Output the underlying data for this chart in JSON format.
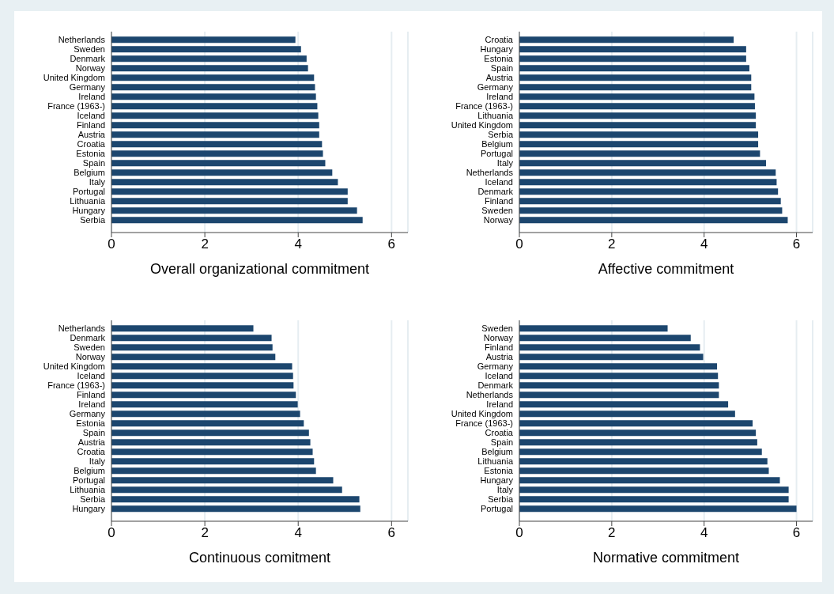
{
  "chart_data": [
    {
      "type": "bar",
      "orientation": "horizontal",
      "xlabel": "Overall organizational commitment",
      "categories": [
        "Netherlands",
        "Sweden",
        "Denmark",
        "Norway",
        "United Kingdom",
        "Germany",
        "Ireland",
        "France (1963-)",
        "Iceland",
        "Finland",
        "Austria",
        "Croatia",
        "Estonia",
        "Spain",
        "Belgium",
        "Italy",
        "Portugal",
        "Lithuania",
        "Hungary",
        "Serbia"
      ],
      "values": [
        3.94,
        4.06,
        4.18,
        4.21,
        4.34,
        4.36,
        4.38,
        4.41,
        4.43,
        4.45,
        4.45,
        4.51,
        4.53,
        4.58,
        4.73,
        4.85,
        5.06,
        5.06,
        5.26,
        5.38
      ],
      "color": "#1c466e",
      "xlim": [
        0,
        6.35
      ],
      "xticks": [
        0,
        2,
        4,
        6
      ],
      "grid": "x"
    },
    {
      "type": "bar",
      "orientation": "horizontal",
      "xlabel": "Affective commitment",
      "categories": [
        "Croatia",
        "Hungary",
        "Estonia",
        "Spain",
        "Austria",
        "Germany",
        "Ireland",
        "France (1963-)",
        "Lithuania",
        "United Kingdom",
        "Serbia",
        "Belgium",
        "Portugal",
        "Italy",
        "Netherlands",
        "Iceland",
        "Denmark",
        "Finland",
        "Sweden",
        "Norway"
      ],
      "values": [
        4.64,
        4.91,
        4.91,
        4.98,
        5.02,
        5.02,
        5.09,
        5.1,
        5.12,
        5.12,
        5.17,
        5.17,
        5.21,
        5.34,
        5.55,
        5.57,
        5.6,
        5.66,
        5.69,
        5.81
      ],
      "color": "#1c466e",
      "xlim": [
        0,
        6.35
      ],
      "xticks": [
        0,
        2,
        4,
        6
      ],
      "grid": "x"
    },
    {
      "type": "bar",
      "orientation": "horizontal",
      "xlabel": "Continuous comitment",
      "categories": [
        "Netherlands",
        "Denmark",
        "Sweden",
        "Norway",
        "United Kingdom",
        "Iceland",
        "France (1963-)",
        "Finland",
        "Ireland",
        "Germany",
        "Estonia",
        "Spain",
        "Austria",
        "Croatia",
        "Italy",
        "Belgium",
        "Portugal",
        "Lithuania",
        "Serbia",
        "Hungary"
      ],
      "values": [
        3.04,
        3.43,
        3.45,
        3.51,
        3.87,
        3.89,
        3.9,
        3.95,
        3.99,
        4.04,
        4.12,
        4.23,
        4.26,
        4.31,
        4.34,
        4.38,
        4.75,
        4.94,
        5.31,
        5.33
      ],
      "color": "#1c466e",
      "xlim": [
        0,
        6.35
      ],
      "xticks": [
        0,
        2,
        4,
        6
      ],
      "grid": "x"
    },
    {
      "type": "bar",
      "orientation": "horizontal",
      "xlabel": "Normative commitment",
      "categories": [
        "Sweden",
        "Norway",
        "Finland",
        "Austria",
        "Germany",
        "Iceland",
        "Denmark",
        "Netherlands",
        "Ireland",
        "United Kingdom",
        "France (1963-)",
        "Croatia",
        "Spain",
        "Belgium",
        "Lithuania",
        "Estonia",
        "Hungary",
        "Italy",
        "Serbia",
        "Portugal"
      ],
      "values": [
        3.21,
        3.71,
        3.91,
        3.98,
        4.28,
        4.3,
        4.32,
        4.32,
        4.52,
        4.67,
        5.05,
        5.12,
        5.15,
        5.25,
        5.37,
        5.4,
        5.64,
        5.83,
        5.83,
        6.0
      ],
      "color": "#1c466e",
      "xlim": [
        0,
        6.35
      ],
      "xticks": [
        0,
        2,
        4,
        6
      ],
      "grid": "x"
    }
  ]
}
